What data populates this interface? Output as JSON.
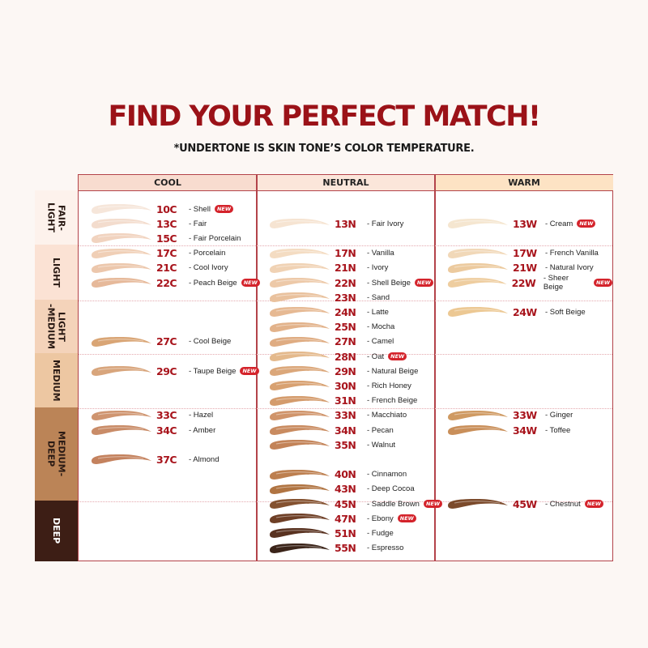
{
  "title": "FIND YOUR PERFECT MATCH!",
  "subtitle": "*UNDERTONE IS SKIN TONE’S COLOR TEMPERATURE.",
  "new_badge": "NEW",
  "colors": {
    "accent": "#a8141c",
    "border": "#b3434a"
  },
  "columns": [
    {
      "label": "COOL",
      "bg": "#f8dccf"
    },
    {
      "label": "NEUTRAL",
      "bg": "#fbe6da"
    },
    {
      "label": "WARM",
      "bg": "#fde3c4"
    }
  ],
  "rows": [
    {
      "label": "FAIR-\nLIGHT",
      "bg": "#fdf2ec",
      "text": "#2a1a14"
    },
    {
      "label": "LIGHT",
      "bg": "#fbe2d4",
      "text": "#2a1a14"
    },
    {
      "label": "LIGHT\n-MEDIUM",
      "bg": "#f4d3ba",
      "text": "#2a1a14"
    },
    {
      "label": "MEDIUM",
      "bg": "#edc7a2",
      "text": "#2a1a14"
    },
    {
      "label": "MEDIUM-\nDEEP",
      "bg": "#bb8457",
      "text": "#2a1a14"
    },
    {
      "label": "DEEP",
      "bg": "#3d1e15",
      "text": "#ffffff"
    }
  ],
  "shades": {
    "cool": [
      {
        "code": "10C",
        "name": "- Shell",
        "new": true,
        "color": "#f6e6da"
      },
      {
        "code": "13C",
        "name": "- Fair",
        "new": false,
        "color": "#f3dccd"
      },
      {
        "code": "15C",
        "name": "- Fair Porcelain",
        "new": false,
        "color": "#f1d3bf"
      },
      {
        "code": "17C",
        "name": "- Porcelain",
        "new": false,
        "color": "#f0cfb6"
      },
      {
        "code": "21C",
        "name": "- Cool Ivory",
        "new": false,
        "color": "#ecc7ac"
      },
      {
        "code": "22C",
        "name": "- Peach Beige",
        "new": true,
        "color": "#e6b99a"
      },
      {
        "code": "27C",
        "name": "- Cool Beige",
        "new": false,
        "color": "#d9a575"
      },
      {
        "code": "29C",
        "name": "- Taupe Beige",
        "new": true,
        "color": "#d8a57c"
      },
      {
        "code": "33C",
        "name": "- Hazel",
        "new": false,
        "color": "#cf9570"
      },
      {
        "code": "34C",
        "name": "- Amber",
        "new": false,
        "color": "#c98c68"
      },
      {
        "code": "37C",
        "name": "- Almond",
        "new": false,
        "color": "#c4825e"
      }
    ],
    "neutral": [
      {
        "code": "13N",
        "name": "- Fair Ivory",
        "new": false,
        "color": "#f6e4d2"
      },
      {
        "code": "17N",
        "name": "- Vanilla",
        "new": false,
        "color": "#f4dcc2"
      },
      {
        "code": "21N",
        "name": "- Ivory",
        "new": false,
        "color": "#f0d2b4"
      },
      {
        "code": "22N",
        "name": "- Shell Beige",
        "new": true,
        "color": "#edc9a8"
      },
      {
        "code": "23N",
        "name": "- Sand",
        "new": false,
        "color": "#e9c19d"
      },
      {
        "code": "24N",
        "name": "- Latte",
        "new": false,
        "color": "#e6b993"
      },
      {
        "code": "25N",
        "name": "- Mocha",
        "new": false,
        "color": "#e2b28a"
      },
      {
        "code": "27N",
        "name": "- Camel",
        "new": false,
        "color": "#dfac82"
      },
      {
        "code": "28N",
        "name": "- Oat",
        "new": true,
        "color": "#e4b98c"
      },
      {
        "code": "29N",
        "name": "- Natural Beige",
        "new": false,
        "color": "#dba77a"
      },
      {
        "code": "30N",
        "name": "- Rich Honey",
        "new": false,
        "color": "#d8a171"
      },
      {
        "code": "31N",
        "name": "- French Beige",
        "new": false,
        "color": "#d49b6c"
      },
      {
        "code": "33N",
        "name": "- Macchiato",
        "new": false,
        "color": "#d0946a"
      },
      {
        "code": "34N",
        "name": "- Pecan",
        "new": false,
        "color": "#c98b60"
      },
      {
        "code": "35N",
        "name": "- Walnut",
        "new": false,
        "color": "#c38358"
      },
      {
        "code": "40N",
        "name": "- Cinnamon",
        "new": false,
        "color": "#bd7f4f"
      },
      {
        "code": "43N",
        "name": "- Deep Cocoa",
        "new": false,
        "color": "#b07442"
      },
      {
        "code": "45N",
        "name": "- Saddle Brown",
        "new": true,
        "color": "#84512f"
      },
      {
        "code": "47N",
        "name": "- Ebony",
        "new": true,
        "color": "#6e3f26"
      },
      {
        "code": "51N",
        "name": "- Fudge",
        "new": false,
        "color": "#593220"
      },
      {
        "code": "55N",
        "name": "- Espresso",
        "new": false,
        "color": "#3b2419"
      }
    ],
    "warm": [
      {
        "code": "13W",
        "name": "- Cream",
        "new": true,
        "color": "#f5e6d0"
      },
      {
        "code": "17W",
        "name": "- French Vanilla",
        "new": false,
        "color": "#f1d8b8"
      },
      {
        "code": "21W",
        "name": "- Natural Ivory",
        "new": false,
        "color": "#ecca9e"
      },
      {
        "code": "22W",
        "name": "- Sheer Beige",
        "new": true,
        "color": "#eecd9f"
      },
      {
        "code": "24W",
        "name": "- Soft Beige",
        "new": false,
        "color": "#ecc893"
      },
      {
        "code": "33W",
        "name": "- Ginger",
        "new": false,
        "color": "#cf9a62"
      },
      {
        "code": "34W",
        "name": "- Toffee",
        "new": false,
        "color": "#c98f5a"
      },
      {
        "code": "45W",
        "name": "- Chestnut",
        "new": true,
        "color": "#7b4a2b"
      }
    ]
  }
}
